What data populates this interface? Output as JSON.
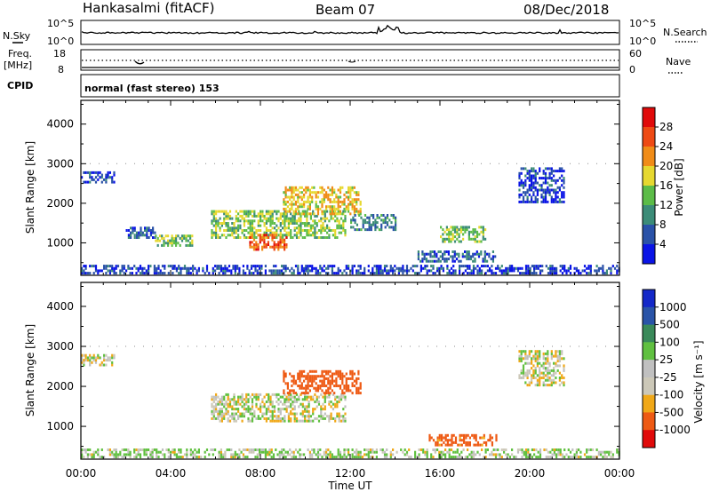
{
  "header": {
    "station": "Hankasalmi (fitACF)",
    "beam": "Beam 07",
    "date": "08/Dec/2018"
  },
  "noise_panel": {
    "left_label": "N.Sky",
    "left_top_tick": "10^5",
    "left_bottom_tick": "10^0",
    "right_top_tick": "10^5",
    "right_bottom_tick": "10^0",
    "right_label": "N.Search"
  },
  "freq_panel": {
    "left_label_1": "Freq.",
    "left_label_2": "[MHz]",
    "left_top_tick": "18",
    "left_bottom_tick": "8",
    "right_top_tick": "60",
    "right_bottom_tick": "0",
    "right_label": "Nave"
  },
  "cpid": {
    "label": "CPID",
    "text": "normal (fast stereo) 153"
  },
  "power_panel": {
    "ylabel": "Slant Range [km]",
    "cbar_label": "Power [dB]",
    "cbar_ticks": [
      "28",
      "24",
      "20",
      "16",
      "12",
      "8",
      "4"
    ]
  },
  "velocity_panel": {
    "ylabel": "Slant Range [km]",
    "cbar_label": "Velocity [m s⁻¹]",
    "cbar_ticks": [
      "1000",
      "500",
      "100",
      "25",
      "-25",
      "-100",
      "-500",
      "-1000"
    ]
  },
  "xaxis": {
    "label": "Time UT",
    "ticks": [
      "00:00",
      "04:00",
      "08:00",
      "12:00",
      "16:00",
      "20:00",
      "00:00"
    ]
  },
  "y_ticks": [
    "4000",
    "3000",
    "2000",
    "1000"
  ],
  "colors": {
    "power_scale": [
      "#0a14e6",
      "#2a52a8",
      "#3c8c78",
      "#5cbc48",
      "#e6d830",
      "#f08c18",
      "#ee4a14",
      "#e00a0a"
    ],
    "velocity_scale": [
      "#e00a0a",
      "#ee5a14",
      "#f0a818",
      "#ccc8b8",
      "#c0c0c0",
      "#60c040",
      "#3a8a5a",
      "#2a54a8",
      "#1428c8"
    ]
  },
  "chart_data": {
    "type": "heatmap",
    "x_range_hours": [
      0,
      24
    ],
    "y_range_km": [
      180,
      4600
    ],
    "panels": [
      {
        "name": "Power [dB]",
        "scale": [
          4,
          32
        ],
        "regions": [
          {
            "t0": 0.0,
            "t1": 24.0,
            "r0": 200,
            "r1": 420,
            "level": 8
          },
          {
            "t0": 0.0,
            "t1": 1.5,
            "r0": 2500,
            "r1": 2800,
            "level": 8
          },
          {
            "t0": 2.0,
            "t1": 3.3,
            "r0": 1100,
            "r1": 1400,
            "level": 9
          },
          {
            "t0": 3.3,
            "t1": 5.0,
            "r0": 900,
            "r1": 1150,
            "level": 17
          },
          {
            "t0": 5.8,
            "t1": 11.8,
            "r0": 1100,
            "r1": 1800,
            "level": 17
          },
          {
            "t0": 7.5,
            "t1": 9.2,
            "r0": 800,
            "r1": 1200,
            "level": 26
          },
          {
            "t0": 9.0,
            "t1": 12.5,
            "r0": 1700,
            "r1": 2400,
            "level": 21
          },
          {
            "t0": 12.0,
            "t1": 14.0,
            "r0": 1300,
            "r1": 1700,
            "level": 12
          },
          {
            "t0": 15.0,
            "t1": 18.5,
            "r0": 500,
            "r1": 800,
            "level": 10
          },
          {
            "t0": 16.0,
            "t1": 18.0,
            "r0": 1000,
            "r1": 1400,
            "level": 16
          },
          {
            "t0": 19.5,
            "t1": 21.5,
            "r0": 2000,
            "r1": 2900,
            "level": 8
          }
        ]
      },
      {
        "name": "Velocity [m s-1]",
        "scale": [
          -1000,
          1000
        ],
        "regions": [
          {
            "t0": 0.0,
            "t1": 24.0,
            "r0": 200,
            "r1": 420,
            "level": 25
          },
          {
            "t0": 0.0,
            "t1": 1.5,
            "r0": 2500,
            "r1": 2800,
            "level": 0
          },
          {
            "t0": 5.8,
            "t1": 11.8,
            "r0": 1100,
            "r1": 1800,
            "level": 0
          },
          {
            "t0": 9.0,
            "t1": 12.5,
            "r0": 1800,
            "r1": 2400,
            "level": -300
          },
          {
            "t0": 15.5,
            "t1": 18.5,
            "r0": 500,
            "r1": 800,
            "level": -150
          },
          {
            "t0": 19.5,
            "t1": 21.5,
            "r0": 2000,
            "r1": 2900,
            "level": 0
          }
        ]
      }
    ]
  }
}
